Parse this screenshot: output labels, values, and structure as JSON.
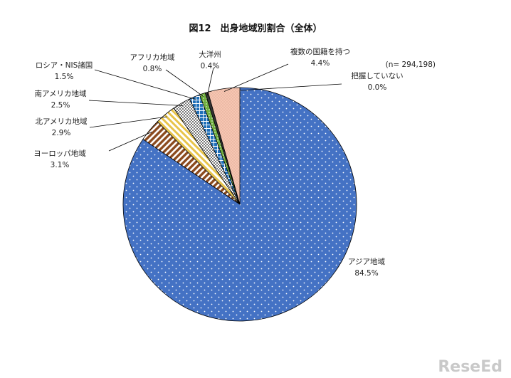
{
  "chart_data": {
    "type": "pie",
    "title": "図12　出身地域別割合（全体）",
    "note": "(n= 294,198)",
    "slices": [
      {
        "label": "アジア地域",
        "value": 84.5,
        "value_label": "84.5%",
        "color": "#4472c4"
      },
      {
        "label": "ヨーロッパ地域",
        "value": 3.1,
        "value_label": "3.1%",
        "color": "#8b4a1e"
      },
      {
        "label": "北アメリカ地域",
        "value": 2.9,
        "value_label": "2.9%",
        "color": "#e8c44a"
      },
      {
        "label": "南アメリカ地域",
        "value": 2.5,
        "value_label": "2.5%",
        "color": "#9a9a9a"
      },
      {
        "label": "ロシア・NIS諸国",
        "value": 1.5,
        "value_label": "1.5%",
        "color": "#1f6fb8"
      },
      {
        "label": "アフリカ地域",
        "value": 0.8,
        "value_label": "0.8%",
        "color": "#6fae3e"
      },
      {
        "label": "大洋州",
        "value": 0.4,
        "value_label": "0.4%",
        "color": "#333333"
      },
      {
        "label": "複数の国籍を持つ",
        "value": 4.4,
        "value_label": "4.4%",
        "color": "#f4b8a0"
      },
      {
        "label": "把握していない",
        "value": 0.0,
        "value_label": "0.0%",
        "color": "#ffffff"
      }
    ]
  },
  "watermark": "ReseEd"
}
